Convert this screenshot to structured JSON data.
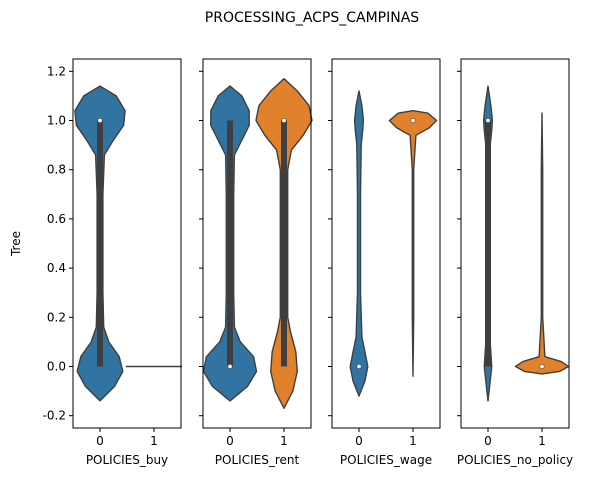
{
  "title": "PROCESSING_ACPS_CAMPINAS",
  "colors": {
    "category_0": "#3274a1",
    "category_1": "#e1812c",
    "inner_box": "#3f3f3f",
    "edge": "#3f3f3f",
    "median": "#ffffff"
  },
  "chart_data": [
    {
      "type": "violin",
      "xlabel": "POLICIES_buy",
      "ylabel": "Tree",
      "ylim": [
        -0.25,
        1.25
      ],
      "y_ticks": [
        "-0.2",
        "0.0",
        "0.2",
        "0.4",
        "0.6",
        "0.8",
        "1.0",
        "1.2"
      ],
      "categories": [
        "0",
        "1"
      ],
      "violins": [
        {
          "category": "0",
          "y_min": -0.14,
          "y_max": 1.14,
          "q1": 0.0,
          "median": 1.0,
          "q3": 1.0,
          "whisker_low": 0.0,
          "whisker_high": 1.0,
          "profile": [
            [
              -0.14,
              0.0
            ],
            [
              -0.08,
              0.2
            ],
            [
              -0.02,
              0.31
            ],
            [
              0.04,
              0.26
            ],
            [
              0.1,
              0.12
            ],
            [
              0.16,
              0.05
            ],
            [
              0.3,
              0.04
            ],
            [
              0.5,
              0.04
            ],
            [
              0.7,
              0.04
            ],
            [
              0.86,
              0.06
            ],
            [
              0.92,
              0.18
            ],
            [
              0.98,
              0.32
            ],
            [
              1.04,
              0.34
            ],
            [
              1.1,
              0.22
            ],
            [
              1.14,
              0.0
            ]
          ]
        },
        {
          "category": "1",
          "y_min": 0.0,
          "y_max": 0.0,
          "q1": 0.0,
          "median": 0.0,
          "q3": 0.0,
          "whisker_low": 0.0,
          "whisker_high": 0.0,
          "flat": true
        }
      ]
    },
    {
      "type": "violin",
      "xlabel": "POLICIES_rent",
      "ylim": [
        -0.25,
        1.25
      ],
      "categories": [
        "0",
        "1"
      ],
      "violins": [
        {
          "category": "0",
          "y_min": -0.14,
          "y_max": 1.14,
          "q1": 0.0,
          "median": 0.0,
          "q3": 1.0,
          "whisker_low": 0.0,
          "whisker_high": 1.0,
          "profile": [
            [
              -0.14,
              0.0
            ],
            [
              -0.08,
              0.24
            ],
            [
              -0.02,
              0.36
            ],
            [
              0.04,
              0.32
            ],
            [
              0.1,
              0.14
            ],
            [
              0.16,
              0.06
            ],
            [
              0.3,
              0.05
            ],
            [
              0.5,
              0.05
            ],
            [
              0.7,
              0.05
            ],
            [
              0.86,
              0.06
            ],
            [
              0.92,
              0.16
            ],
            [
              0.98,
              0.26
            ],
            [
              1.04,
              0.26
            ],
            [
              1.1,
              0.16
            ],
            [
              1.14,
              0.0
            ]
          ]
        },
        {
          "category": "1",
          "y_min": -0.17,
          "y_max": 1.17,
          "q1": 0.0,
          "median": 1.0,
          "q3": 1.0,
          "whisker_low": 0.0,
          "whisker_high": 1.0,
          "profile": [
            [
              -0.17,
              0.0
            ],
            [
              -0.1,
              0.12
            ],
            [
              -0.02,
              0.18
            ],
            [
              0.06,
              0.16
            ],
            [
              0.14,
              0.09
            ],
            [
              0.2,
              0.05
            ],
            [
              0.4,
              0.05
            ],
            [
              0.6,
              0.05
            ],
            [
              0.8,
              0.05
            ],
            [
              0.88,
              0.1
            ],
            [
              0.94,
              0.26
            ],
            [
              1.0,
              0.38
            ],
            [
              1.06,
              0.34
            ],
            [
              1.12,
              0.18
            ],
            [
              1.17,
              0.0
            ]
          ]
        }
      ]
    },
    {
      "type": "violin",
      "xlabel": "POLICIES_wage",
      "ylim": [
        -0.25,
        1.25
      ],
      "categories": [
        "0",
        "1"
      ],
      "violins": [
        {
          "category": "0",
          "y_min": -0.12,
          "y_max": 1.12,
          "q1": 0.0,
          "median": 0.0,
          "q3": 0.0,
          "whisker_low": 0.0,
          "whisker_high": 0.0,
          "profile": [
            [
              -0.12,
              0.0
            ],
            [
              -0.06,
              0.08
            ],
            [
              0.0,
              0.12
            ],
            [
              0.06,
              0.08
            ],
            [
              0.12,
              0.04
            ],
            [
              0.3,
              0.02
            ],
            [
              0.5,
              0.02
            ],
            [
              0.7,
              0.02
            ],
            [
              0.9,
              0.03
            ],
            [
              0.96,
              0.05
            ],
            [
              1.0,
              0.06
            ],
            [
              1.06,
              0.04
            ],
            [
              1.12,
              0.0
            ]
          ]
        },
        {
          "category": "1",
          "y_min": -0.04,
          "y_max": 1.04,
          "q1": 1.0,
          "median": 1.0,
          "q3": 1.0,
          "whisker_low": 1.0,
          "whisker_high": 1.0,
          "profile": [
            [
              -0.04,
              0.0
            ],
            [
              0.2,
              0.01
            ],
            [
              0.5,
              0.01
            ],
            [
              0.8,
              0.01
            ],
            [
              0.94,
              0.04
            ],
            [
              0.97,
              0.22
            ],
            [
              1.0,
              0.32
            ],
            [
              1.03,
              0.2
            ],
            [
              1.04,
              0.0
            ]
          ]
        }
      ]
    },
    {
      "type": "violin",
      "xlabel": "POLICIES_no_policy",
      "ylim": [
        -0.25,
        1.25
      ],
      "categories": [
        "0",
        "1"
      ],
      "violins": [
        {
          "category": "0",
          "y_min": -0.14,
          "y_max": 1.14,
          "q1": 0.0,
          "median": 1.0,
          "q3": 1.0,
          "whisker_low": 0.0,
          "whisker_high": 1.0,
          "profile": [
            [
              -0.14,
              0.0
            ],
            [
              -0.06,
              0.03
            ],
            [
              0.0,
              0.05
            ],
            [
              0.1,
              0.03
            ],
            [
              0.3,
              0.02
            ],
            [
              0.5,
              0.02
            ],
            [
              0.7,
              0.02
            ],
            [
              0.9,
              0.03
            ],
            [
              0.96,
              0.05
            ],
            [
              1.0,
              0.06
            ],
            [
              1.06,
              0.04
            ],
            [
              1.14,
              0.0
            ]
          ]
        },
        {
          "category": "1",
          "y_min": -0.03,
          "y_max": 1.03,
          "q1": 0.0,
          "median": 0.0,
          "q3": 0.0,
          "whisker_low": 0.0,
          "whisker_high": 0.0,
          "profile": [
            [
              -0.03,
              0.0
            ],
            [
              -0.02,
              0.24
            ],
            [
              0.0,
              0.36
            ],
            [
              0.02,
              0.26
            ],
            [
              0.04,
              0.04
            ],
            [
              0.2,
              0.01
            ],
            [
              0.5,
              0.01
            ],
            [
              0.8,
              0.01
            ],
            [
              1.03,
              0.0
            ]
          ]
        }
      ]
    }
  ]
}
